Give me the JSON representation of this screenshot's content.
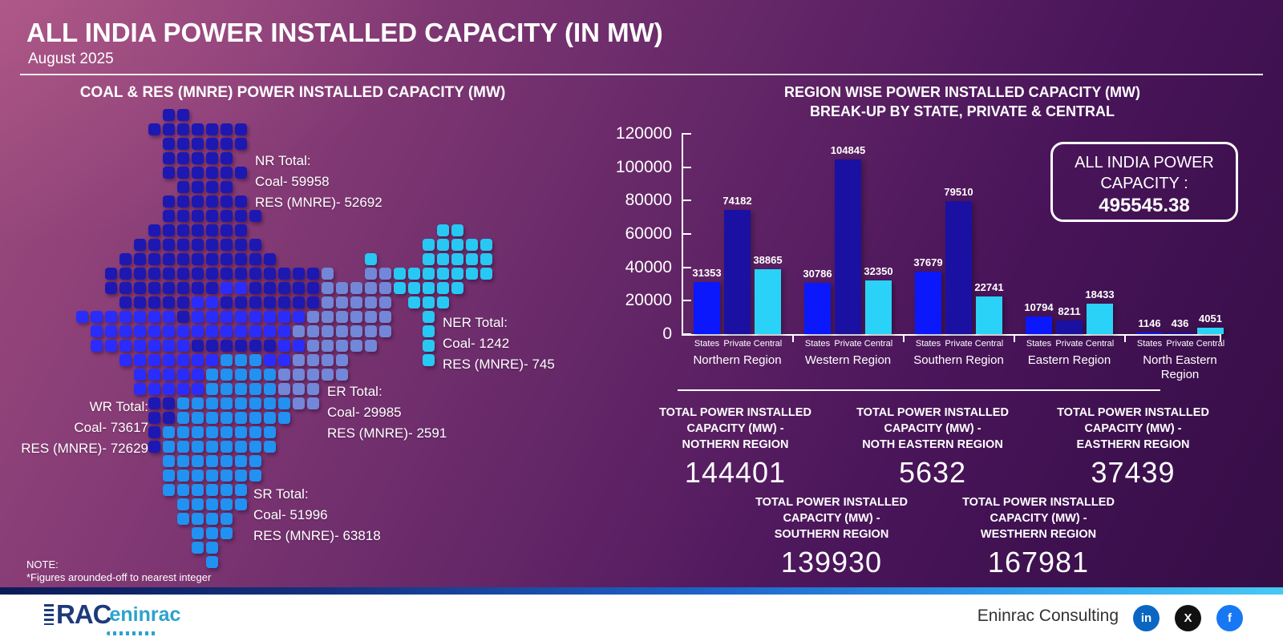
{
  "header": {
    "title": "ALL INDIA POWER INSTALLED CAPACITY (IN MW)",
    "subtitle": "August 2025"
  },
  "map_panel": {
    "title": "COAL & RES (MNRE) POWER INSTALLED CAPACITY (MW)",
    "note_title": "NOTE:",
    "note_text": "*Figures arounded-off to nearest integer",
    "legend_colors": {
      "nr": "#1d18b2",
      "wr": "#2a2cfb",
      "er": "#7287d7",
      "ner": "#27c8f4",
      "sr": "#2191f2"
    },
    "regions": [
      {
        "id": "nr",
        "name": "Northern Region",
        "label": "NR Total:",
        "coal": "Coal- 59958",
        "res": "RES (MNRE)- 52692"
      },
      {
        "id": "ner",
        "name": "North Eastern Region",
        "label": "NER Total:",
        "coal": "Coal- 1242",
        "res": "RES (MNRE)- 745"
      },
      {
        "id": "er",
        "name": "Eastern Region",
        "label": "ER Total:",
        "coal": "Coal- 29985",
        "res": "RES (MNRE)- 2591"
      },
      {
        "id": "wr",
        "name": "Western Region",
        "label": "WR Total:",
        "coal": "Coal- 73617",
        "res": "RES (MNRE)- 72629"
      },
      {
        "id": "sr",
        "name": "Southern Region",
        "label": "SR Total:",
        "coal": "Coal- 51996",
        "res": "RES (MNRE)- 63818"
      }
    ],
    "grid": [
      "......NN......................",
      ".....NNNNNNN..................",
      "......NNNNNN..................",
      "......NNNNN...................",
      "......NNNNNN..................",
      ".......NNNN...................",
      "......NNNNNN..................",
      "......NNNNNNN.................",
      ".....NNNNNNN.............CC...",
      "....NNNNNNNNN...........CCCCC.",
      "...NNNNNNNNNNN......C...CCCCC.",
      "..NNNNNNNNNNNNNNNE..EECCCCCCC.",
      "..NNNNNNNNWWNNNNNEEEEECCCCC...",
      "...NNNNNWWNNNNNNNEEEEE.CCC....",
      "WWWWWWWNWWWWWWWWEEEEEE..C.....",
      ".WWWWWWWWWWWWWWEEEEEEE..C.....",
      ".WWWWWWWNNNNNNWWEEEEE...C.....",
      "...WWWWWWWSSSWWEEEE.....C.....",
      "....WWWWWSSSSSEEEEE...........",
      "....WWWWWSSSSSEEE.............",
      ".....NNSSSSSSSSEE.............",
      ".....NNSSSSSSSS...............",
      ".....NSSSSSSSS................",
      ".....NSSSSSSSS................",
      "......SSSSSSS.................",
      "......SSSSSSS.................",
      "......SSSSSS..................",
      ".......SSSSS..................",
      ".......SSSS...................",
      "........SSS...................",
      "........SS....................",
      ".........S...................."
    ]
  },
  "chart_panel": {
    "title_line1": "REGION WISE POWER INSTALLED CAPACITY (MW)",
    "title_line2": "BREAK-UP BY STATE, PRIVATE & CENTRAL",
    "capacity_box": {
      "line1": "ALL INDIA POWER",
      "line2": "CAPACITY :",
      "value": "495545.38"
    }
  },
  "chart_data": {
    "type": "bar",
    "title": "REGION WISE POWER INSTALLED CAPACITY (MW) BREAK-UP BY STATE, PRIVATE & CENTRAL",
    "categories": [
      "Northern Region",
      "Western Region",
      "Southern Region",
      "Eastern Region",
      "North Eastern Region"
    ],
    "series": [
      {
        "name": "States",
        "color": "#0b18fb",
        "values": [
          31353,
          30786,
          37679,
          10794,
          1146
        ]
      },
      {
        "name": "Private",
        "color": "#1a11a3",
        "values": [
          74182,
          104845,
          79510,
          8211,
          436
        ]
      },
      {
        "name": "Central",
        "color": "#2ad2f7",
        "values": [
          38865,
          32350,
          22741,
          18433,
          4051
        ]
      }
    ],
    "ylim": [
      0,
      120000
    ],
    "yticks": [
      0,
      20000,
      40000,
      60000,
      80000,
      100000,
      120000
    ],
    "grid": false,
    "legend_position": "none",
    "annotation": "ALL INDIA POWER CAPACITY : 495545.38"
  },
  "totals": [
    {
      "lines": [
        "TOTAL POWER INSTALLED",
        "CAPACITY (MW) -",
        "NOTHERN REGION"
      ],
      "value": "144401"
    },
    {
      "lines": [
        "TOTAL POWER INSTALLED",
        "CAPACITY (MW) -",
        "NOTH EASTERN REGION"
      ],
      "value": "5632"
    },
    {
      "lines": [
        "TOTAL POWER INSTALLED",
        "CAPACITY (MW) -",
        "EASTHERN REGION"
      ],
      "value": "37439"
    },
    {
      "lines": [
        "TOTAL POWER INSTALLED",
        "CAPACITY (MW) -",
        "SOUTHERN REGION"
      ],
      "value": "139930"
    },
    {
      "lines": [
        "TOTAL POWER INSTALLED",
        "CAPACITY (MW) -",
        "WESTHERN REGION"
      ],
      "value": "167981"
    }
  ],
  "footer": {
    "company": "Eninrac Consulting",
    "logo": {
      "rac": "RAC",
      "eninrac": "eninrac"
    },
    "social": [
      {
        "name": "linkedin",
        "glyph": "in",
        "color": "#0a66c2"
      },
      {
        "name": "x",
        "glyph": "X",
        "color": "#111111"
      },
      {
        "name": "facebook",
        "glyph": "f",
        "color": "#1877f2"
      }
    ]
  }
}
